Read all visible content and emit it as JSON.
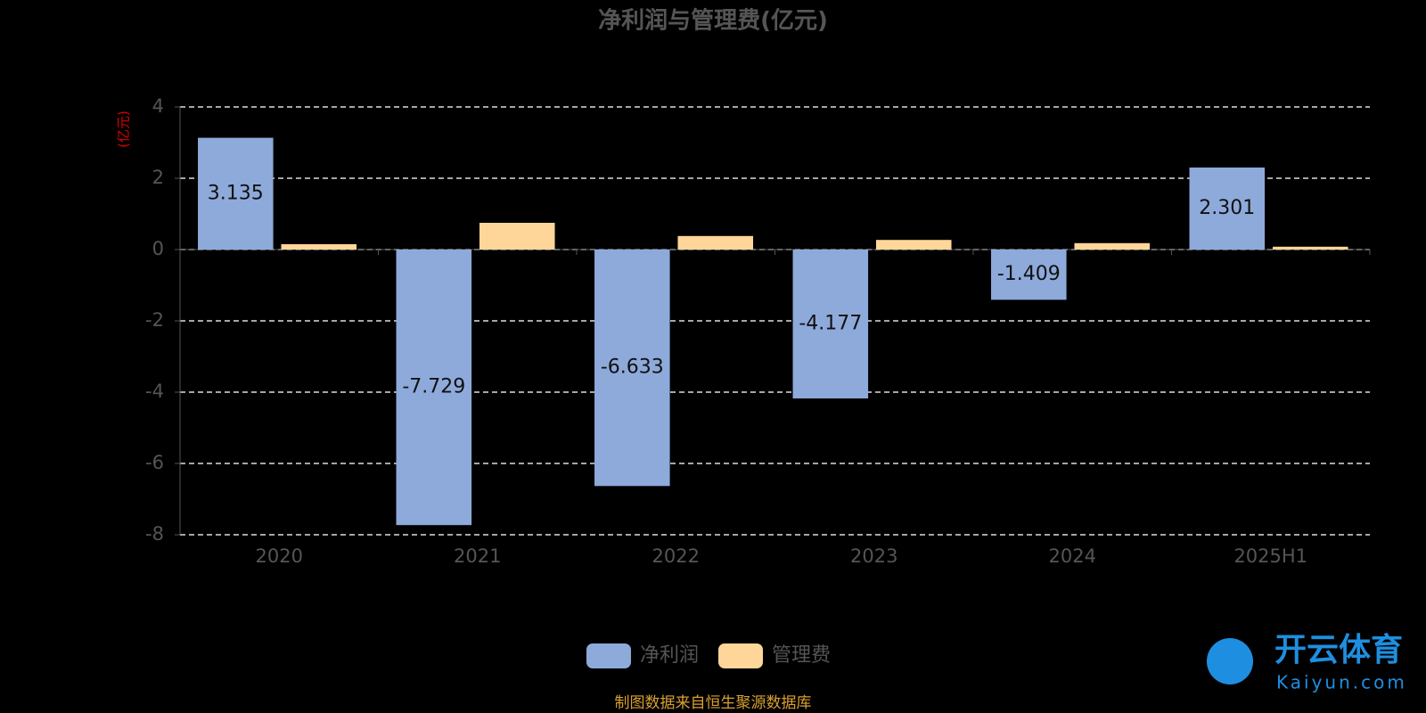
{
  "chart_data": {
    "type": "bar",
    "title": "净利润与管理费(亿元)",
    "y_label": "(亿元)",
    "categories": [
      "2020",
      "2021",
      "2022",
      "2023",
      "2024",
      "2025H1"
    ],
    "series": [
      {
        "name": "净利润",
        "color": "#8eaadb",
        "values": [
          3.135,
          -7.729,
          -6.633,
          -4.177,
          -1.409,
          2.301
        ]
      },
      {
        "name": "管理费",
        "color": "#ffd699",
        "values": [
          0.15,
          0.75,
          0.38,
          0.27,
          0.18,
          0.08
        ]
      }
    ],
    "ylim": [
      -8,
      4
    ],
    "yticks": [
      -8,
      -6,
      -4,
      -2,
      0,
      2,
      4
    ],
    "grid": true,
    "source": "制图数据来自恒生聚源数据库",
    "watermark": [
      "开云体育",
      "Kaiyun.com"
    ]
  }
}
